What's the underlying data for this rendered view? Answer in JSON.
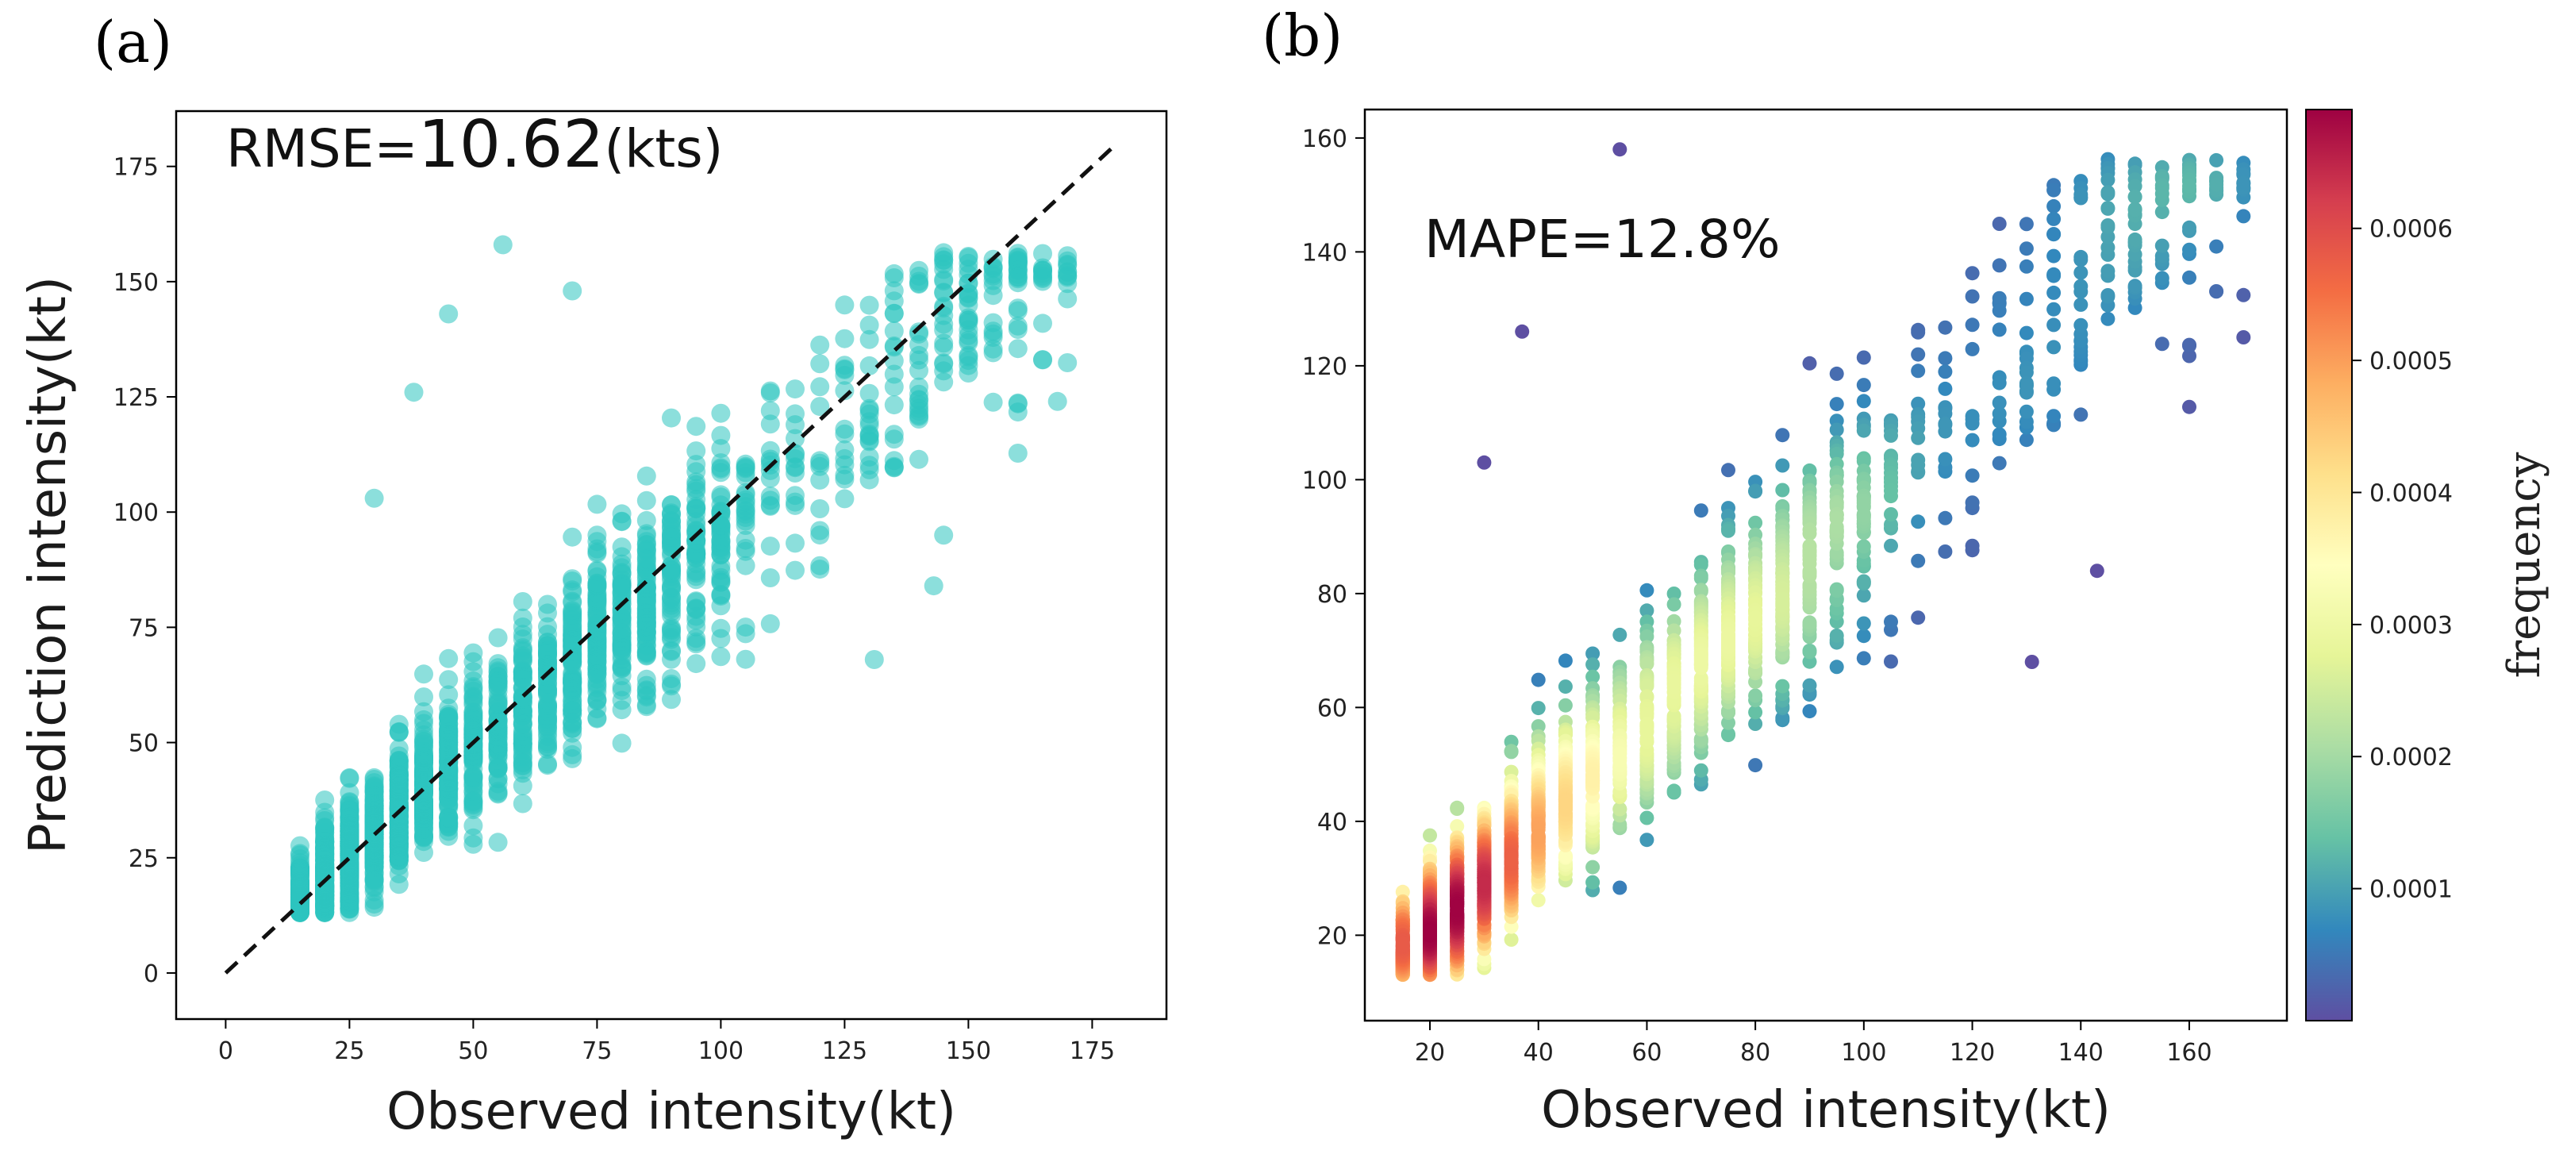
{
  "figure": {
    "panel_a_label": "(a)",
    "panel_b_label": "(b)"
  },
  "chart_data": [
    {
      "type": "scatter",
      "panel": "(a)",
      "xlabel": "Observed intensity(kt)",
      "ylabel": "Prediction intensity(kt)",
      "xlim": [
        -10,
        190
      ],
      "ylim": [
        -10,
        187
      ],
      "xticks": [
        0,
        25,
        50,
        75,
        100,
        125,
        150,
        175
      ],
      "yticks": [
        0,
        25,
        50,
        75,
        100,
        125,
        150,
        175
      ],
      "annotation": {
        "prefix": "RMSE=",
        "value": "10.62",
        "unit": "(kts)"
      },
      "marker_color": "#2ec4c0",
      "reference_line": {
        "from": [
          0,
          0
        ],
        "to": [
          180,
          180
        ],
        "style": "dashed",
        "color": "#111111"
      },
      "points_summary": {
        "x_range": [
          13,
          170
        ],
        "y_range": [
          13,
          158
        ],
        "trend": "roughly 1:1 with spread ~10 kt",
        "n_points_rendered": 2200
      },
      "outliers": [
        [
          45,
          143
        ],
        [
          56,
          158
        ],
        [
          70,
          148
        ],
        [
          38,
          126
        ],
        [
          30,
          103
        ],
        [
          143,
          84
        ],
        [
          131,
          68
        ],
        [
          145,
          95
        ],
        [
          168,
          124
        ],
        [
          170,
          152
        ]
      ]
    },
    {
      "type": "scatter",
      "panel": "(b)",
      "xlabel": "Observed intensity(kt)",
      "ylabel": "",
      "xlim": [
        8,
        178
      ],
      "ylim": [
        5,
        165
      ],
      "xticks": [
        20,
        40,
        60,
        80,
        100,
        120,
        140,
        160
      ],
      "yticks": [
        20,
        40,
        60,
        80,
        100,
        120,
        140,
        160
      ],
      "annotation": {
        "prefix": "MAPE=",
        "value": "12.8%"
      },
      "color_by": "point density",
      "colormap": "Spectral_r",
      "colormap_stops": [
        "#5e4fa2",
        "#3288bd",
        "#66c2a5",
        "#abdda4",
        "#e6f598",
        "#ffffbf",
        "#fee08b",
        "#fdae61",
        "#f46d43",
        "#d53e4f",
        "#9e0142"
      ],
      "colorbar": {
        "label": "frequency",
        "range": [
          0,
          0.00069
        ],
        "ticks": [
          0.0001,
          0.0002,
          0.0003,
          0.0004,
          0.0005,
          0.0006
        ],
        "tick_labels": [
          "0.0001",
          "0.0002",
          "0.0003",
          "0.0004",
          "0.0005",
          "0.0006"
        ]
      },
      "points_summary": {
        "x_range": [
          13,
          170
        ],
        "y_range": [
          13,
          158
        ],
        "density_peak": [
          30,
          30
        ]
      },
      "outliers": [
        [
          55,
          158
        ],
        [
          37,
          126
        ],
        [
          30,
          103
        ],
        [
          143,
          84
        ],
        [
          131,
          68
        ],
        [
          170,
          125
        ],
        [
          170,
          152
        ]
      ]
    }
  ]
}
